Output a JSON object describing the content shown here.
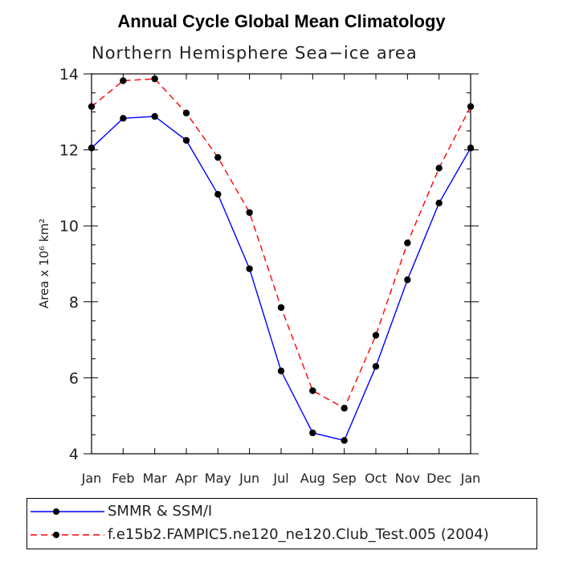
{
  "chart_data": {
    "type": "line",
    "title": "Annual Cycle Global Mean Climatology",
    "subtitle": "Northern Hemisphere Sea−ice area",
    "ylabel": "Area x 10⁶ km²",
    "xlabel": "",
    "categories": [
      "Jan",
      "Feb",
      "Mar",
      "Apr",
      "May",
      "Jun",
      "Jul",
      "Aug",
      "Sep",
      "Oct",
      "Nov",
      "Dec",
      "Jan"
    ],
    "ylim": [
      4,
      14
    ],
    "yticks": [
      "4",
      "6",
      "8",
      "10",
      "12",
      "14"
    ],
    "grid": false,
    "legend_placement": "bottom",
    "series": [
      {
        "name": "SMMR & SSM/I",
        "color": "#0000ff",
        "dash": "solid",
        "values": [
          12.05,
          12.83,
          12.88,
          12.25,
          10.83,
          8.87,
          6.18,
          4.55,
          4.35,
          6.3,
          8.58,
          10.6,
          12.05
        ]
      },
      {
        "name": "f.e15b2.FAMPIC5.ne120_ne120.Club_Test.005 (2004)",
        "color": "#ff0000",
        "dash": "dashed",
        "values": [
          13.14,
          13.82,
          13.87,
          12.97,
          11.8,
          10.35,
          7.85,
          5.66,
          5.2,
          7.12,
          9.55,
          11.52,
          13.14
        ]
      }
    ]
  }
}
